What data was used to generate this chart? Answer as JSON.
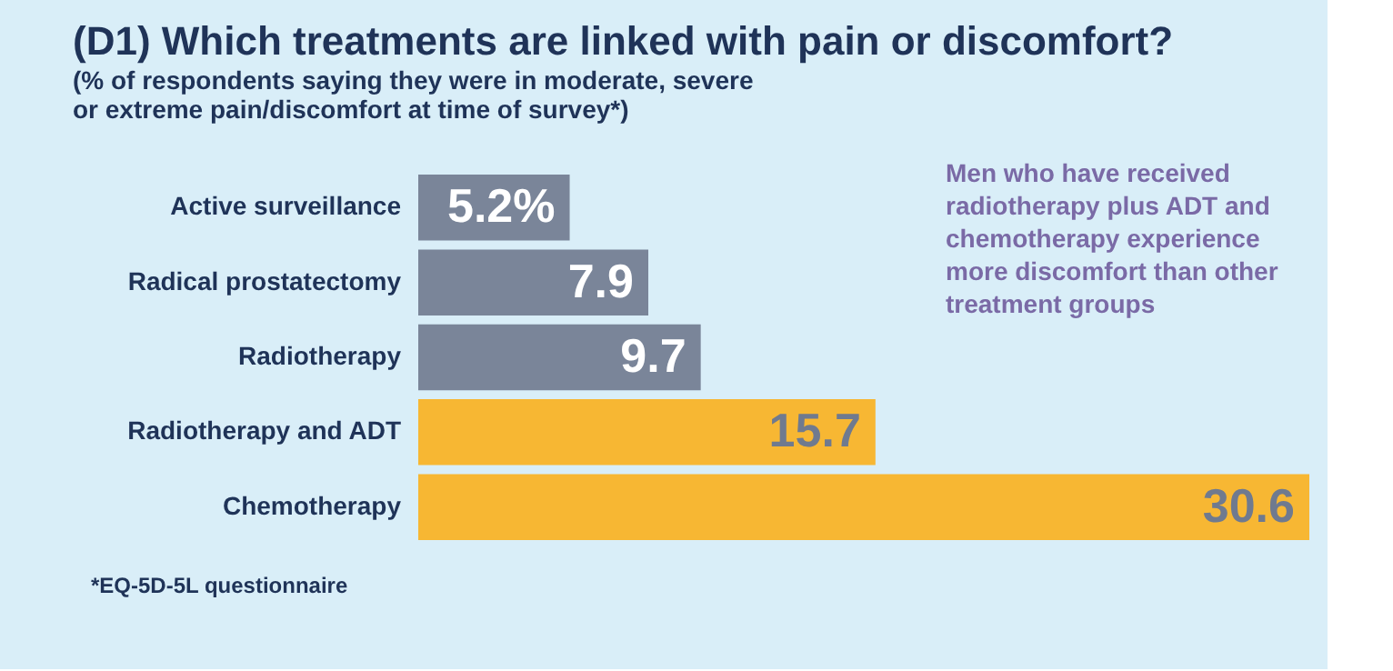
{
  "chart_data": {
    "type": "bar",
    "orientation": "horizontal",
    "title": "(D1) Which treatments are linked with pain or discomfort?",
    "subtitle": "(% of respondents saying they were in moderate, severe or extreme pain/discomfort at time of survey*)",
    "categories": [
      "Active surveillance",
      "Radical prostatectomy",
      "Radiotherapy",
      "Radiotherapy and ADT",
      "Chemotherapy"
    ],
    "values": [
      5.2,
      7.9,
      9.7,
      15.7,
      30.6
    ],
    "value_labels": [
      "5.2%",
      "7.9",
      "9.7",
      "15.7",
      "30.6"
    ],
    "colors": [
      "#7a8599",
      "#7a8599",
      "#7a8599",
      "#f7b733",
      "#f7b733"
    ],
    "annotations": [
      "Men who have received radiotherapy plus ADT and chemotherapy experience more discomfort than other treatment groups",
      "*EQ-5D-5L questionnaire"
    ]
  }
}
